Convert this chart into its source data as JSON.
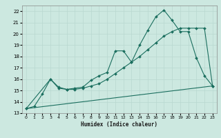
{
  "xlabel": "Humidex (Indice chaleur)",
  "background_color": "#cce8e0",
  "grid_color": "#b8d8d0",
  "line_color": "#1a6e5e",
  "xlim": [
    -0.5,
    23.5
  ],
  "ylim": [
    13,
    22.5
  ],
  "xticks": [
    0,
    1,
    2,
    3,
    4,
    5,
    6,
    7,
    8,
    9,
    10,
    11,
    12,
    13,
    14,
    15,
    16,
    17,
    18,
    19,
    20,
    21,
    22,
    23
  ],
  "yticks": [
    13,
    14,
    15,
    16,
    17,
    18,
    19,
    20,
    21,
    22
  ],
  "line1_x": [
    0,
    1,
    2,
    3,
    4,
    5,
    6,
    7,
    8,
    9,
    10,
    11,
    12,
    13,
    14,
    15,
    16,
    17,
    18,
    19,
    20,
    21,
    22,
    23
  ],
  "line1_y": [
    13.4,
    13.6,
    14.7,
    16.0,
    15.3,
    15.1,
    15.2,
    15.3,
    15.9,
    16.3,
    16.6,
    18.5,
    18.5,
    17.5,
    19.0,
    20.3,
    21.5,
    22.1,
    21.2,
    20.2,
    20.2,
    17.9,
    16.3,
    15.4
  ],
  "line2_x": [
    0,
    3,
    4,
    5,
    6,
    7,
    8,
    9,
    10,
    11,
    12,
    13,
    14,
    15,
    16,
    17,
    18,
    19,
    20,
    21,
    22,
    23
  ],
  "line2_y": [
    13.4,
    16.0,
    15.2,
    15.1,
    15.1,
    15.2,
    15.4,
    15.6,
    16.0,
    16.5,
    17.0,
    17.5,
    18.0,
    18.6,
    19.2,
    19.8,
    20.2,
    20.5,
    20.5,
    20.5,
    20.5,
    15.4
  ],
  "line3_x": [
    0,
    23
  ],
  "line3_y": [
    13.4,
    15.4
  ],
  "figwidth": 3.2,
  "figheight": 2.0,
  "dpi": 100
}
